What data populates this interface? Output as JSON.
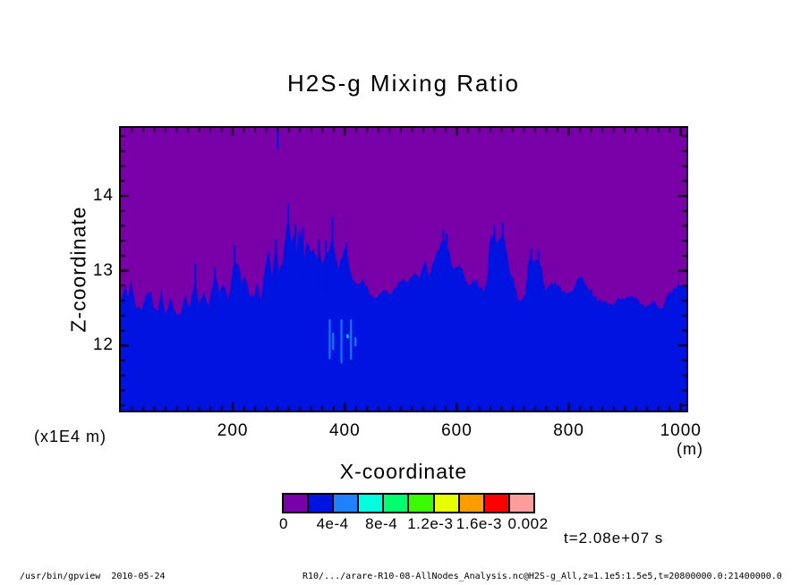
{
  "title": "H2S-g Mixing Ratio",
  "axes": {
    "xlabel": "X-coordinate",
    "ylabel": "Z-coordinate",
    "x_unit_label": "(m)",
    "y_unit_label": "(x1E4 m)",
    "x_tick_labels": [
      "200",
      "400",
      "600",
      "800",
      "1000"
    ],
    "y_tick_labels": [
      "12",
      "13",
      "14"
    ]
  },
  "time_label": "t=2.08e+07 s",
  "footer": {
    "left": "/usr/bin/gpview  2010-05-24",
    "right": "R10/.../arare-R10-08-AllNodes_Analysis.nc@H2S-g_All,z=1.1e5:1.5e5,t=20800000.0:21400000.0"
  },
  "colorbar": {
    "labels": [
      "0",
      "4e-4",
      "8e-4",
      "1.2e-3",
      "1.6e-3",
      "0.002"
    ],
    "colors": [
      "#7900A8",
      "#0013E0",
      "#1E82FF",
      "#00FFDC",
      "#00FF6E",
      "#3CFA00",
      "#E8FF00",
      "#FF9C00",
      "#FF0000",
      "#FF9C9C"
    ]
  },
  "chart_data": {
    "type": "heatmap",
    "title": "H2S-g Mixing Ratio",
    "xlabel": "X-coordinate (m)",
    "ylabel": "Z-coordinate (x1E4 m)",
    "xlim": [
      0,
      1010
    ],
    "zlim": [
      11.13,
      14.91
    ],
    "x_ticks": [
      200,
      400,
      600,
      800,
      1000
    ],
    "y_ticks": [
      12,
      13,
      14
    ],
    "x_minor_step": 20,
    "y_minor_step": 0.2,
    "levels": [
      0,
      0.0002,
      0.0004,
      0.0006,
      0.0008,
      0.001,
      0.0012,
      0.0014,
      0.0016,
      0.0018,
      0.002
    ],
    "colors": [
      "#7900A8",
      "#0013E0",
      "#1E82FF",
      "#00FFDC",
      "#00FF6E",
      "#3CFA00",
      "#E8FF00",
      "#FF9C00",
      "#FF0000",
      "#FF9C9C"
    ],
    "time": "t=2.08e+07 s",
    "upper_region": "mixing ratio in lowest bin 0 to 2e-4 (purple)",
    "lower_region": "mixing ratio 2e-4 to 4e-4 (blue) below jagged interface",
    "interface_profile": [
      [
        0,
        12.6
      ],
      [
        8,
        12.8
      ],
      [
        13,
        12.66
      ],
      [
        19,
        12.84
      ],
      [
        27,
        12.5
      ],
      [
        37,
        12.47
      ],
      [
        45,
        12.68
      ],
      [
        53,
        12.72
      ],
      [
        59,
        12.5
      ],
      [
        66,
        12.44
      ],
      [
        72,
        12.76
      ],
      [
        80,
        12.42
      ],
      [
        88,
        12.64
      ],
      [
        98,
        12.44
      ],
      [
        107,
        12.41
      ],
      [
        115,
        12.68
      ],
      [
        123,
        12.5
      ],
      [
        133,
        12.92
      ],
      [
        139,
        12.56
      ],
      [
        149,
        12.73
      ],
      [
        157,
        12.54
      ],
      [
        168,
        12.94
      ],
      [
        176,
        12.68
      ],
      [
        184,
        12.8
      ],
      [
        192,
        12.6
      ],
      [
        203,
        13.13
      ],
      [
        210,
        13.09
      ],
      [
        216,
        12.82
      ],
      [
        222,
        12.92
      ],
      [
        230,
        12.68
      ],
      [
        237,
        12.64
      ],
      [
        243,
        12.84
      ],
      [
        250,
        12.59
      ],
      [
        258,
        13.04
      ],
      [
        264,
        13.28
      ],
      [
        270,
        12.92
      ],
      [
        277,
        13.37
      ],
      [
        283,
        12.98
      ],
      [
        290,
        13.16
      ],
      [
        296,
        13.58
      ],
      [
        299,
        13.76
      ],
      [
        304,
        13.4
      ],
      [
        309,
        13.49
      ],
      [
        314,
        13.22
      ],
      [
        318,
        13.54
      ],
      [
        323,
        13.47
      ],
      [
        328,
        13.16
      ],
      [
        333,
        13.42
      ],
      [
        338,
        13.25
      ],
      [
        344,
        13.3
      ],
      [
        350,
        13.16
      ],
      [
        354,
        13.31
      ],
      [
        360,
        13.1
      ],
      [
        366,
        13.22
      ],
      [
        373,
        13.3
      ],
      [
        378,
        13.49
      ],
      [
        384,
        13.16
      ],
      [
        390,
        13.04
      ],
      [
        397,
        13.25
      ],
      [
        403,
        13.28
      ],
      [
        410,
        12.98
      ],
      [
        416,
        12.88
      ],
      [
        424,
        12.82
      ],
      [
        432,
        12.92
      ],
      [
        440,
        12.8
      ],
      [
        448,
        12.68
      ],
      [
        456,
        12.64
      ],
      [
        464,
        12.7
      ],
      [
        472,
        12.74
      ],
      [
        480,
        12.68
      ],
      [
        488,
        12.76
      ],
      [
        496,
        12.86
      ],
      [
        504,
        12.9
      ],
      [
        512,
        12.84
      ],
      [
        520,
        12.92
      ],
      [
        526,
        12.96
      ],
      [
        533,
        12.9
      ],
      [
        539,
        13.04
      ],
      [
        544,
        13.13
      ],
      [
        550,
        12.92
      ],
      [
        557,
        13.1
      ],
      [
        563,
        13.22
      ],
      [
        570,
        13.34
      ],
      [
        576,
        13.4
      ],
      [
        582,
        13.37
      ],
      [
        589,
        13.16
      ],
      [
        595,
        13.0
      ],
      [
        602,
        13.06
      ],
      [
        608,
        13.02
      ],
      [
        614,
        12.92
      ],
      [
        621,
        12.8
      ],
      [
        627,
        12.86
      ],
      [
        634,
        12.88
      ],
      [
        640,
        12.78
      ],
      [
        646,
        12.74
      ],
      [
        653,
        12.8
      ],
      [
        659,
        13.4
      ],
      [
        664,
        13.46
      ],
      [
        667,
        13.48
      ],
      [
        672,
        13.37
      ],
      [
        677,
        13.42
      ],
      [
        682,
        13.48
      ],
      [
        686,
        13.4
      ],
      [
        691,
        13.16
      ],
      [
        696,
        12.96
      ],
      [
        702,
        12.86
      ],
      [
        709,
        12.62
      ],
      [
        715,
        12.59
      ],
      [
        722,
        12.68
      ],
      [
        728,
        13.13
      ],
      [
        733,
        13.18
      ],
      [
        738,
        13.1
      ],
      [
        742,
        13.16
      ],
      [
        747,
        13.13
      ],
      [
        752,
        13.04
      ],
      [
        758,
        12.72
      ],
      [
        765,
        12.8
      ],
      [
        771,
        12.82
      ],
      [
        778,
        12.82
      ],
      [
        784,
        12.8
      ],
      [
        792,
        12.74
      ],
      [
        800,
        12.72
      ],
      [
        808,
        12.75
      ],
      [
        816,
        12.9
      ],
      [
        824,
        12.92
      ],
      [
        832,
        12.79
      ],
      [
        840,
        12.76
      ],
      [
        848,
        12.66
      ],
      [
        856,
        12.62
      ],
      [
        864,
        12.6
      ],
      [
        872,
        12.55
      ],
      [
        880,
        12.54
      ],
      [
        888,
        12.64
      ],
      [
        896,
        12.63
      ],
      [
        904,
        12.67
      ],
      [
        912,
        12.68
      ],
      [
        920,
        12.64
      ],
      [
        928,
        12.55
      ],
      [
        936,
        12.5
      ],
      [
        944,
        12.53
      ],
      [
        952,
        12.6
      ],
      [
        960,
        12.51
      ],
      [
        968,
        12.5
      ],
      [
        976,
        12.68
      ],
      [
        984,
        12.69
      ],
      [
        992,
        12.76
      ],
      [
        1000,
        12.79
      ],
      [
        1006,
        12.78
      ],
      [
        1010,
        12.8
      ]
    ],
    "needles": [
      [
        133,
        13.1
      ],
      [
        168,
        13.05
      ],
      [
        203,
        13.34
      ],
      [
        277,
        13.42
      ],
      [
        299,
        13.9
      ],
      [
        312,
        13.62
      ],
      [
        325,
        13.58
      ],
      [
        354,
        13.42
      ],
      [
        366,
        13.4
      ],
      [
        378,
        13.72
      ],
      [
        403,
        13.38
      ],
      [
        576,
        13.55
      ],
      [
        582,
        13.5
      ],
      [
        667,
        13.6
      ],
      [
        682,
        13.65
      ],
      [
        733,
        13.3
      ],
      [
        746,
        13.28
      ]
    ],
    "specks": [
      {
        "x": 373,
        "z": [
          11.82,
          12.35
        ],
        "c": 2
      },
      {
        "x": 379,
        "z": [
          11.94,
          12.17
        ],
        "c": 2
      },
      {
        "x": 394,
        "z": [
          11.76,
          12.35
        ],
        "c": 2
      },
      {
        "x": 405,
        "z": [
          12.1,
          12.15
        ],
        "c": 3
      },
      {
        "x": 411,
        "z": [
          11.81,
          12.35
        ],
        "c": 2
      },
      {
        "x": 419,
        "z": [
          11.99,
          12.11
        ],
        "c": 2
      },
      {
        "x": 280,
        "z": [
          14.62,
          14.91
        ],
        "c": 1
      }
    ]
  }
}
